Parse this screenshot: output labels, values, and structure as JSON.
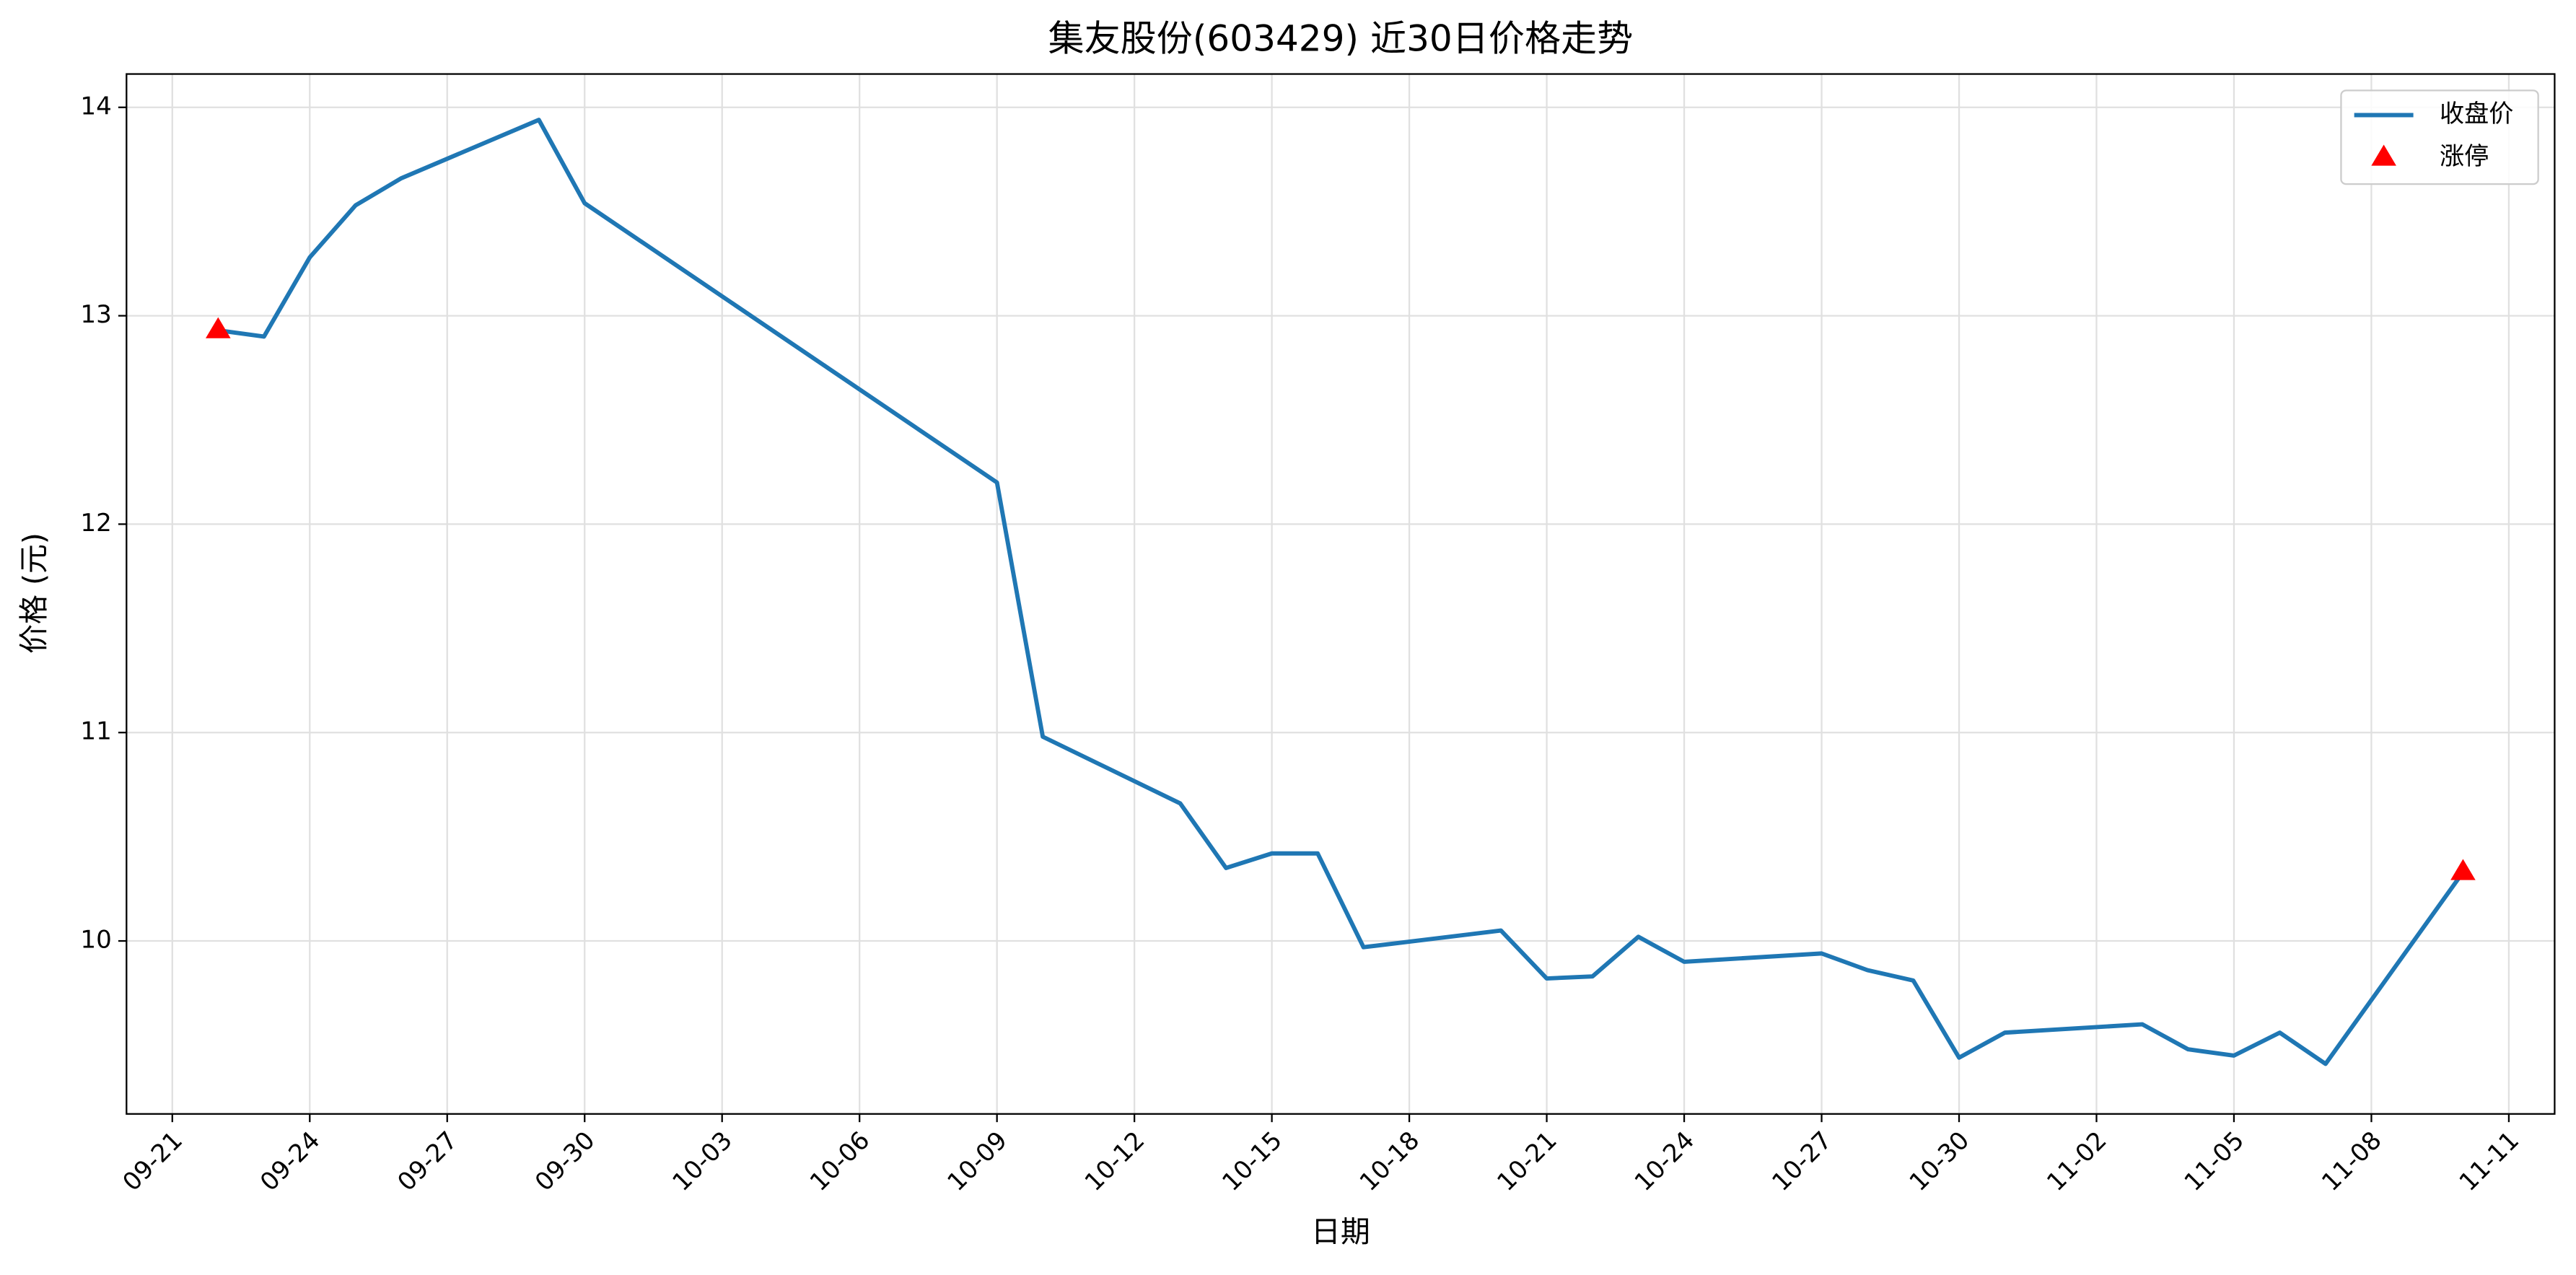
{
  "chart_data": {
    "type": "line",
    "title": "集友股份(603429) 近30日价格走势",
    "x_label": "日期",
    "y_label": "价格 (元)",
    "x": [
      "09-22",
      "09-23",
      "09-24",
      "09-25",
      "09-26",
      "09-29",
      "09-30",
      "10-09",
      "10-10",
      "10-13",
      "10-14",
      "10-15",
      "10-16",
      "10-17",
      "10-20",
      "10-21",
      "10-22",
      "10-23",
      "10-24",
      "10-27",
      "10-28",
      "10-29",
      "10-30",
      "10-31",
      "11-03",
      "11-04",
      "11-05",
      "11-06",
      "11-07",
      "11-10"
    ],
    "series": [
      {
        "name": "收盘价",
        "type": "line",
        "color": "#1f77b4",
        "values": [
          12.93,
          12.9,
          13.28,
          13.53,
          13.66,
          13.94,
          13.54,
          12.2,
          10.98,
          10.66,
          10.35,
          10.42,
          10.42,
          9.97,
          10.05,
          9.82,
          9.83,
          10.02,
          9.9,
          9.94,
          9.86,
          9.81,
          9.44,
          9.56,
          9.6,
          9.48,
          9.45,
          9.56,
          9.41,
          10.33
        ]
      },
      {
        "name": "涨停",
        "type": "scatter",
        "marker": "triangle",
        "color": "#ff0000",
        "x": [
          "09-22",
          "11-10"
        ],
        "values": [
          12.93,
          10.33
        ]
      }
    ],
    "xlim": [
      "09-20",
      "11-12"
    ],
    "xticks": [
      "09-21",
      "09-24",
      "09-27",
      "09-30",
      "10-03",
      "10-06",
      "10-09",
      "10-12",
      "10-15",
      "10-18",
      "10-21",
      "10-24",
      "10-27",
      "10-30",
      "11-02",
      "11-05",
      "11-08",
      "11-11"
    ],
    "ylim": [
      9.17,
      14.16
    ],
    "yticks": [
      10,
      11,
      12,
      13,
      14
    ],
    "grid": true,
    "legend": "upper right"
  }
}
